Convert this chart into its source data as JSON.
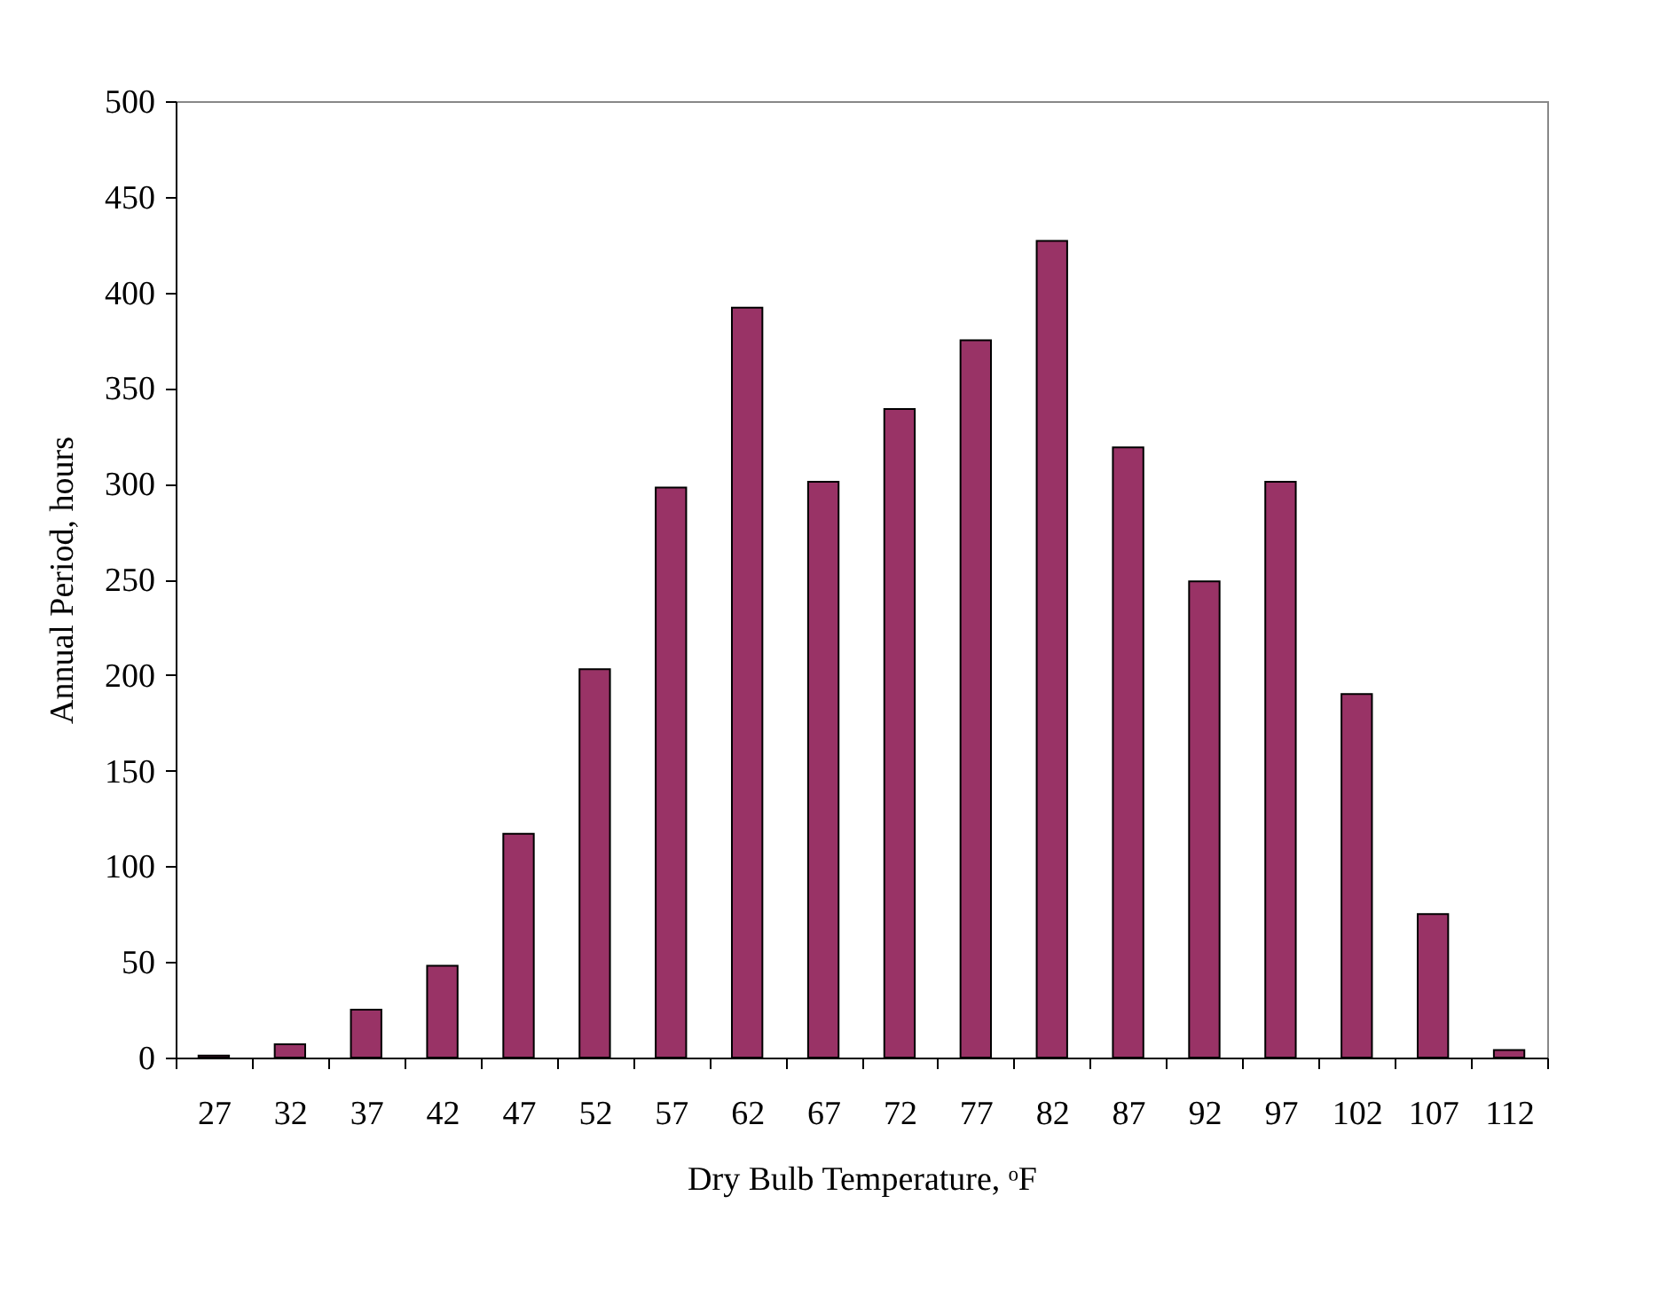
{
  "chart_data": {
    "type": "bar",
    "xlabel": "Dry Bulb Temperature, ᵒF",
    "ylabel": "Annual Period, hours",
    "categories": [
      "27",
      "32",
      "37",
      "42",
      "47",
      "52",
      "57",
      "62",
      "67",
      "72",
      "77",
      "82",
      "87",
      "92",
      "97",
      "102",
      "107",
      "112"
    ],
    "values": [
      1,
      7,
      25,
      48,
      117,
      203,
      298,
      392,
      301,
      339,
      375,
      427,
      319,
      249,
      301,
      190,
      75,
      4
    ],
    "color": "#993366",
    "ylim": [
      0,
      500
    ],
    "yticks": [
      0,
      50,
      100,
      150,
      200,
      250,
      300,
      350,
      400,
      450,
      500
    ],
    "grid": false
  }
}
